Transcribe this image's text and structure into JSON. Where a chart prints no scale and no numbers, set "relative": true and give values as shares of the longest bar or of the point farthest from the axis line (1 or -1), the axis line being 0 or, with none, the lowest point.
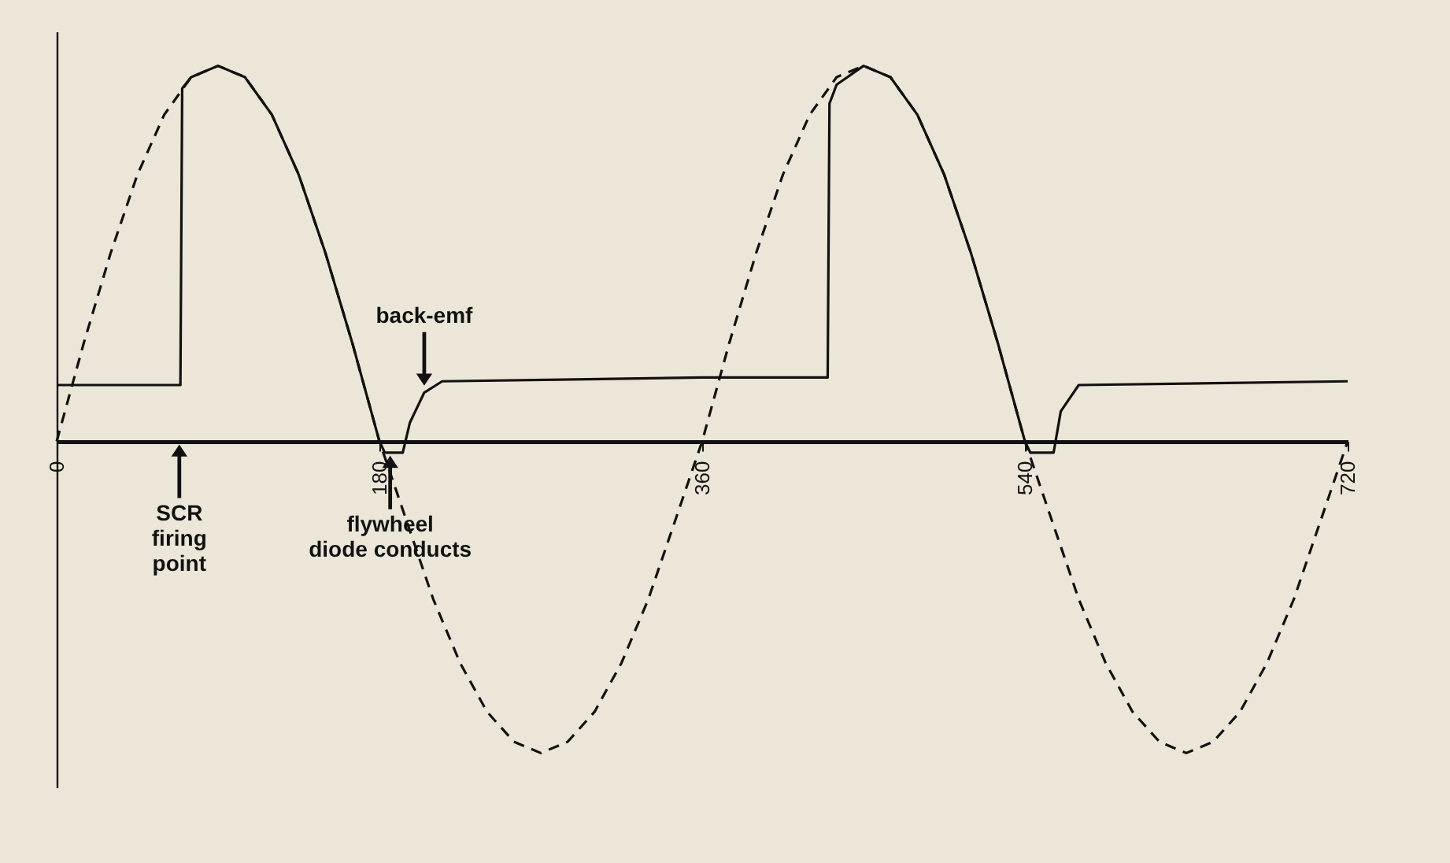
{
  "chart_data": {
    "type": "line",
    "relative": true,
    "x": [
      0,
      15,
      30,
      45,
      60,
      75,
      90,
      105,
      120,
      135,
      150,
      165,
      180,
      195,
      210,
      225,
      240,
      255,
      270,
      285,
      300,
      315,
      330,
      345,
      360,
      375,
      390,
      405,
      420,
      435,
      450,
      465,
      480,
      495,
      510,
      525,
      540,
      555,
      570,
      585,
      600,
      615,
      630,
      645,
      660,
      675,
      690,
      705,
      720
    ],
    "series": [
      {
        "color": "#111111",
        "line_style": "dashed",
        "values": [
          0,
          0.26,
          0.5,
          0.71,
          0.87,
          0.97,
          1,
          0.97,
          0.87,
          0.71,
          0.5,
          0.26,
          0,
          -0.21,
          -0.42,
          -0.59,
          -0.72,
          -0.8,
          -0.83,
          -0.8,
          -0.72,
          -0.59,
          -0.42,
          -0.21,
          0,
          0.26,
          0.5,
          0.71,
          0.87,
          0.97,
          1,
          0.97,
          0.87,
          0.71,
          0.5,
          0.26,
          0,
          -0.21,
          -0.42,
          -0.59,
          -0.72,
          -0.8,
          -0.83,
          -0.8,
          -0.72,
          -0.59,
          -0.42,
          -0.21,
          0
        ]
      },
      {
        "color": "#111111",
        "line_style": "solid",
        "x": [
          0,
          69,
          70,
          75,
          90,
          105,
          120,
          135,
          150,
          165,
          180,
          183,
          193,
          197,
          205,
          215,
          360,
          430,
          431,
          435,
          450,
          465,
          480,
          495,
          510,
          525,
          540,
          543,
          556,
          560,
          570,
          720
        ],
        "values": [
          0.15,
          0.15,
          0.94,
          0.97,
          1,
          0.97,
          0.87,
          0.71,
          0.5,
          0.26,
          0,
          -0.03,
          -0.03,
          0.05,
          0.13,
          0.16,
          0.17,
          0.17,
          0.9,
          0.95,
          1,
          0.97,
          0.87,
          0.71,
          0.5,
          0.26,
          0,
          -0.03,
          -0.03,
          0.08,
          0.15,
          0.16
        ]
      }
    ],
    "xlim": [
      0,
      720
    ],
    "xticks": [
      0,
      180,
      360,
      540,
      720
    ],
    "annotations": [
      {
        "text": "back-emf",
        "x": 205,
        "y": 0.14
      },
      "SCR\nfiring\npoint",
      {
        "text": "flywheel\ndiode conducts",
        "x": 186,
        "y": -0.03
      }
    ]
  }
}
